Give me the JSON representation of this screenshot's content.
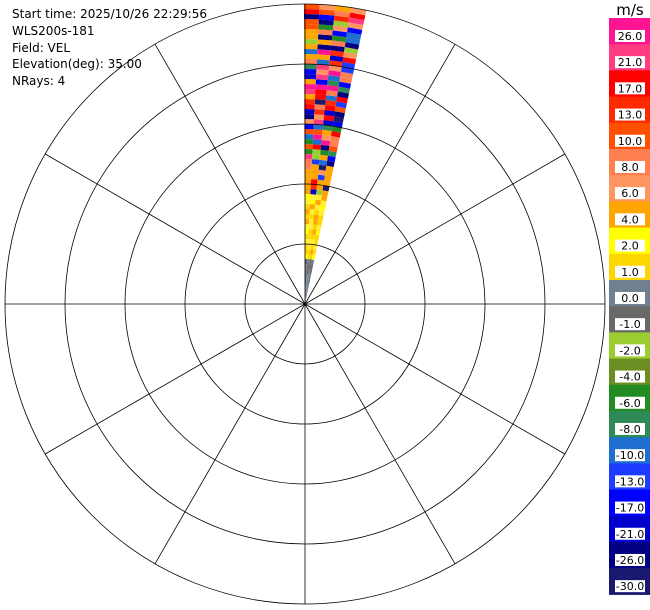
{
  "header": {
    "start_time": "Start time: 2025/10/26 22:29:56",
    "instrument": "WLS200s-181",
    "field": "Field: VEL",
    "elevation": "Elevation(deg): 35.00",
    "nrays": "NRays: 4"
  },
  "chart_data": {
    "type": "heatmap",
    "projection": "polar",
    "title": "",
    "field": "VEL",
    "units": "m/s",
    "range_rings": 5,
    "spokes_deg": [
      0,
      30,
      60,
      90,
      120,
      150,
      180,
      210,
      240,
      270,
      300,
      330
    ],
    "rays_azimuth_deg": [
      0,
      3,
      6,
      9
    ],
    "grid": true,
    "legend_placement": "right",
    "colorbar": {
      "label": "m/s",
      "tick_labels": [
        "26.0",
        "21.0",
        "17.0",
        "13.0",
        "10.0",
        "8.0",
        "6.0",
        "4.0",
        "2.0",
        "1.0",
        "0.0",
        "-1.0",
        "-2.0",
        "-4.0",
        "-6.0",
        "-8.0",
        "-10.0",
        "-13.0",
        "-17.0",
        "-21.0",
        "-26.0",
        "-30.0"
      ],
      "colors": [
        "#ff1493",
        "#ff3c82",
        "#ff0000",
        "#ff2a00",
        "#ff5000",
        "#ff7f50",
        "#ff9560",
        "#ffa500",
        "#ffff00",
        "#ffd700",
        "#708090",
        "#696969",
        "#9acd32",
        "#6b8e23",
        "#228b22",
        "#2e8b57",
        "#1e6fd0",
        "#1e3cff",
        "#0000ff",
        "#0000cd",
        "#000080",
        "#191970"
      ]
    }
  }
}
